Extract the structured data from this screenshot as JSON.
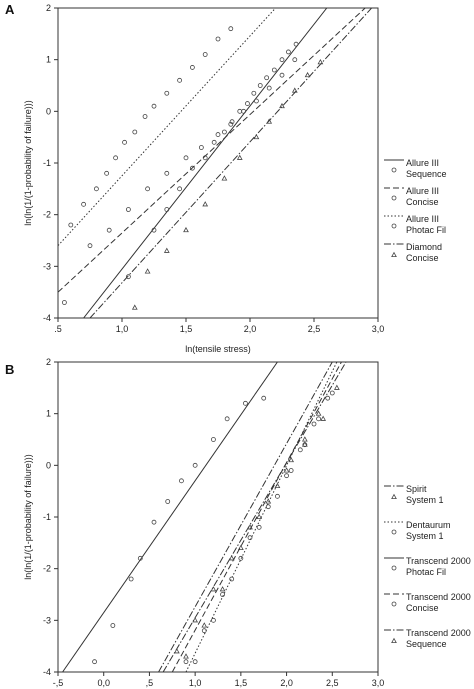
{
  "chart_data": [
    {
      "type": "scatter",
      "panel": "A",
      "xlabel": "ln(tensile stress)",
      "ylabel": "ln(ln(1/(1-probability of failure)))",
      "xlim": [
        0.5,
        3.0
      ],
      "ylim": [
        -4,
        2
      ],
      "xticks": [
        ".5",
        "1,0",
        "1,5",
        "2,0",
        "2,5",
        "3,0"
      ],
      "xtick_values": [
        0.5,
        1.0,
        1.5,
        2.0,
        2.5,
        3.0
      ],
      "yticks": [
        "2",
        "1",
        "0",
        "-1",
        "-2",
        "-3",
        "-4"
      ],
      "ytick_values": [
        2,
        1,
        0,
        -1,
        -2,
        -3,
        -4
      ],
      "grid": false,
      "legend_position": "right",
      "series": [
        {
          "name": "Allure III Sequence",
          "marker": "circle",
          "line": "solid",
          "fit": {
            "x": [
              0.7,
              2.6
            ],
            "y": [
              -4.0,
              2.0
            ]
          },
          "points": [
            {
              "x": 1.05,
              "y": -3.2
            },
            {
              "x": 1.25,
              "y": -2.3
            },
            {
              "x": 1.35,
              "y": -1.9
            },
            {
              "x": 1.45,
              "y": -1.5
            },
            {
              "x": 1.55,
              "y": -1.1
            },
            {
              "x": 1.65,
              "y": -0.9
            },
            {
              "x": 1.72,
              "y": -0.6
            },
            {
              "x": 1.8,
              "y": -0.4
            },
            {
              "x": 1.86,
              "y": -0.2
            },
            {
              "x": 1.92,
              "y": 0.0
            },
            {
              "x": 1.98,
              "y": 0.15
            },
            {
              "x": 2.03,
              "y": 0.35
            },
            {
              "x": 2.08,
              "y": 0.5
            },
            {
              "x": 2.13,
              "y": 0.65
            },
            {
              "x": 2.19,
              "y": 0.8
            },
            {
              "x": 2.25,
              "y": 1.0
            },
            {
              "x": 2.3,
              "y": 1.15
            },
            {
              "x": 2.36,
              "y": 1.3
            }
          ]
        },
        {
          "name": "Allure III Concise",
          "marker": "circle",
          "line": "dashed",
          "fit": {
            "x": [
              0.5,
              2.9
            ],
            "y": [
              -3.5,
              2.0
            ]
          },
          "points": [
            {
              "x": 0.55,
              "y": -3.7
            },
            {
              "x": 0.75,
              "y": -2.6
            },
            {
              "x": 0.9,
              "y": -2.3
            },
            {
              "x": 1.05,
              "y": -1.9
            },
            {
              "x": 1.2,
              "y": -1.5
            },
            {
              "x": 1.35,
              "y": -1.2
            },
            {
              "x": 1.5,
              "y": -0.9
            },
            {
              "x": 1.62,
              "y": -0.7
            },
            {
              "x": 1.75,
              "y": -0.45
            },
            {
              "x": 1.85,
              "y": -0.25
            },
            {
              "x": 1.95,
              "y": 0.0
            },
            {
              "x": 2.05,
              "y": 0.2
            },
            {
              "x": 2.15,
              "y": 0.45
            },
            {
              "x": 2.25,
              "y": 0.7
            },
            {
              "x": 2.35,
              "y": 1.0
            }
          ]
        },
        {
          "name": "Allure III Photac Fil",
          "marker": "circle",
          "line": "dotted",
          "fit": {
            "x": [
              0.5,
              2.2
            ],
            "y": [
              -2.6,
              2.0
            ]
          },
          "points": [
            {
              "x": 0.6,
              "y": -2.2
            },
            {
              "x": 0.7,
              "y": -1.8
            },
            {
              "x": 0.8,
              "y": -1.5
            },
            {
              "x": 0.88,
              "y": -1.2
            },
            {
              "x": 0.95,
              "y": -0.9
            },
            {
              "x": 1.02,
              "y": -0.6
            },
            {
              "x": 1.1,
              "y": -0.4
            },
            {
              "x": 1.18,
              "y": -0.1
            },
            {
              "x": 1.25,
              "y": 0.1
            },
            {
              "x": 1.35,
              "y": 0.35
            },
            {
              "x": 1.45,
              "y": 0.6
            },
            {
              "x": 1.55,
              "y": 0.85
            },
            {
              "x": 1.65,
              "y": 1.1
            },
            {
              "x": 1.75,
              "y": 1.4
            },
            {
              "x": 1.85,
              "y": 1.6
            }
          ]
        },
        {
          "name": "Diamond Concise",
          "marker": "triangle",
          "line": "dashdot",
          "fit": {
            "x": [
              0.75,
              2.95
            ],
            "y": [
              -4.0,
              2.0
            ]
          },
          "points": [
            {
              "x": 1.1,
              "y": -3.8
            },
            {
              "x": 1.2,
              "y": -3.1
            },
            {
              "x": 1.35,
              "y": -2.7
            },
            {
              "x": 1.5,
              "y": -2.3
            },
            {
              "x": 1.65,
              "y": -1.8
            },
            {
              "x": 1.8,
              "y": -1.3
            },
            {
              "x": 1.92,
              "y": -0.9
            },
            {
              "x": 2.05,
              "y": -0.5
            },
            {
              "x": 2.15,
              "y": -0.2
            },
            {
              "x": 2.25,
              "y": 0.1
            },
            {
              "x": 2.35,
              "y": 0.4
            },
            {
              "x": 2.45,
              "y": 0.7
            },
            {
              "x": 2.55,
              "y": 0.95
            }
          ]
        }
      ]
    },
    {
      "type": "scatter",
      "panel": "B",
      "xlabel": "ln(tensile stress)",
      "ylabel": "ln(ln(1/(1-probability of failure)))",
      "xlim": [
        -0.5,
        3.0
      ],
      "ylim": [
        -4,
        2
      ],
      "xticks": [
        "-,5",
        "0,0",
        ",5",
        "1,0",
        "1,5",
        "2,0",
        "2,5",
        "3,0"
      ],
      "xtick_values": [
        -0.5,
        0.0,
        0.5,
        1.0,
        1.5,
        2.0,
        2.5,
        3.0
      ],
      "yticks": [
        "2",
        "1",
        "0",
        "-1",
        "-2",
        "-3",
        "-4"
      ],
      "ytick_values": [
        2,
        1,
        0,
        -1,
        -2,
        -3,
        -4
      ],
      "grid": false,
      "legend_position": "right",
      "series": [
        {
          "name": "Spirit System 1",
          "marker": "triangle",
          "line": "dashdot",
          "fit": {
            "x": [
              0.6,
              2.5
            ],
            "y": [
              -4.0,
              2.0
            ]
          },
          "points": [
            {
              "x": 0.9,
              "y": -3.7
            },
            {
              "x": 1.1,
              "y": -3.1
            },
            {
              "x": 1.3,
              "y": -2.4
            },
            {
              "x": 1.5,
              "y": -1.6
            },
            {
              "x": 1.7,
              "y": -1.0
            },
            {
              "x": 1.9,
              "y": -0.4
            },
            {
              "x": 2.05,
              "y": 0.1
            },
            {
              "x": 2.2,
              "y": 0.5
            },
            {
              "x": 2.35,
              "y": 1.0
            }
          ]
        },
        {
          "name": "Dentaurum System 1",
          "marker": "circle",
          "line": "dotted",
          "fit": {
            "x": [
              0.9,
              2.55
            ],
            "y": [
              -4.0,
              2.0
            ]
          },
          "points": [
            {
              "x": 1.0,
              "y": -3.8
            },
            {
              "x": 1.2,
              "y": -3.0
            },
            {
              "x": 1.4,
              "y": -2.2
            },
            {
              "x": 1.6,
              "y": -1.4
            },
            {
              "x": 1.8,
              "y": -0.8
            },
            {
              "x": 2.0,
              "y": -0.2
            },
            {
              "x": 2.15,
              "y": 0.3
            },
            {
              "x": 2.3,
              "y": 0.8
            },
            {
              "x": 2.45,
              "y": 1.3
            }
          ]
        },
        {
          "name": "Transcend 2000 Photac Fil",
          "marker": "circle",
          "line": "solid",
          "fit": {
            "x": [
              -0.45,
              1.9
            ],
            "y": [
              -4.0,
              2.0
            ]
          },
          "points": [
            {
              "x": -0.1,
              "y": -3.8
            },
            {
              "x": 0.1,
              "y": -3.1
            },
            {
              "x": 0.3,
              "y": -2.2
            },
            {
              "x": 0.4,
              "y": -1.8
            },
            {
              "x": 0.55,
              "y": -1.1
            },
            {
              "x": 0.7,
              "y": -0.7
            },
            {
              "x": 0.85,
              "y": -0.3
            },
            {
              "x": 1.0,
              "y": 0.0
            },
            {
              "x": 1.2,
              "y": 0.5
            },
            {
              "x": 1.35,
              "y": 0.9
            },
            {
              "x": 1.55,
              "y": 1.2
            },
            {
              "x": 1.75,
              "y": 1.3
            }
          ]
        },
        {
          "name": "Transcend 2000 Concise",
          "marker": "circle",
          "line": "dashed",
          "fit": {
            "x": [
              0.75,
              2.6
            ],
            "y": [
              -4.0,
              2.0
            ]
          },
          "points": [
            {
              "x": 0.9,
              "y": -3.8
            },
            {
              "x": 1.1,
              "y": -3.2
            },
            {
              "x": 1.3,
              "y": -2.5
            },
            {
              "x": 1.5,
              "y": -1.8
            },
            {
              "x": 1.7,
              "y": -1.2
            },
            {
              "x": 1.9,
              "y": -0.6
            },
            {
              "x": 2.05,
              "y": -0.1
            },
            {
              "x": 2.2,
              "y": 0.4
            },
            {
              "x": 2.35,
              "y": 0.9
            },
            {
              "x": 2.5,
              "y": 1.4
            }
          ]
        },
        {
          "name": "Transcend 2000 Sequence",
          "marker": "triangle",
          "line": "dashdot",
          "fit": {
            "x": [
              0.65,
              2.65
            ],
            "y": [
              -4.0,
              2.0
            ]
          },
          "points": [
            {
              "x": 0.8,
              "y": -3.6
            },
            {
              "x": 1.0,
              "y": -3.0
            },
            {
              "x": 1.2,
              "y": -2.4
            },
            {
              "x": 1.4,
              "y": -1.8
            },
            {
              "x": 1.6,
              "y": -1.2
            },
            {
              "x": 1.8,
              "y": -0.7
            },
            {
              "x": 2.0,
              "y": -0.1
            },
            {
              "x": 2.2,
              "y": 0.4
            },
            {
              "x": 2.4,
              "y": 0.9
            },
            {
              "x": 2.55,
              "y": 1.5
            }
          ]
        }
      ]
    }
  ]
}
